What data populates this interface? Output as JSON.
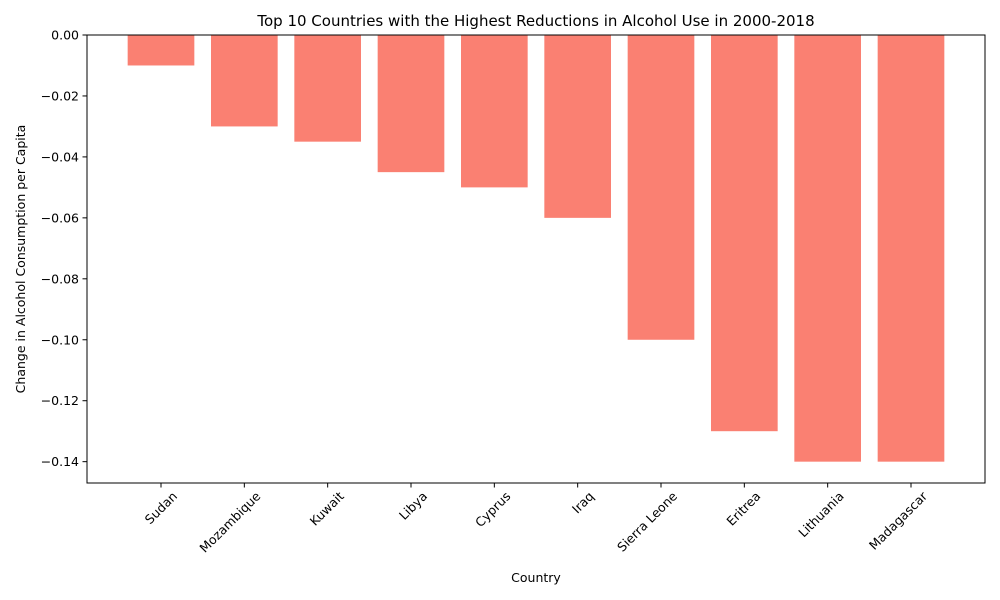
{
  "chart_data": {
    "type": "bar",
    "title": "Top 10 Countries with the Highest Reductions in Alcohol Use in 2000-2018",
    "xlabel": "Country",
    "ylabel": "Change in Alcohol Consumption per Capita",
    "categories": [
      "Sudan",
      "Mozambique",
      "Kuwait",
      "Libya",
      "Cyprus",
      "Iraq",
      "Sierra Leone",
      "Eritrea",
      "Lithuania",
      "Madagascar"
    ],
    "values": [
      -0.01,
      -0.03,
      -0.035,
      -0.045,
      -0.05,
      -0.06,
      -0.1,
      -0.13,
      -0.14,
      -0.14
    ],
    "ylim": [
      -0.147,
      0.0
    ],
    "yticks": [
      "0.00",
      "−0.02",
      "−0.04",
      "−0.06",
      "−0.08",
      "−0.10",
      "−0.12",
      "−0.14"
    ],
    "ytick_values": [
      0.0,
      -0.02,
      -0.04,
      -0.06,
      -0.08,
      -0.1,
      -0.12,
      -0.14
    ],
    "bar_color": "#fa8072",
    "grid": false,
    "legend": "none"
  }
}
